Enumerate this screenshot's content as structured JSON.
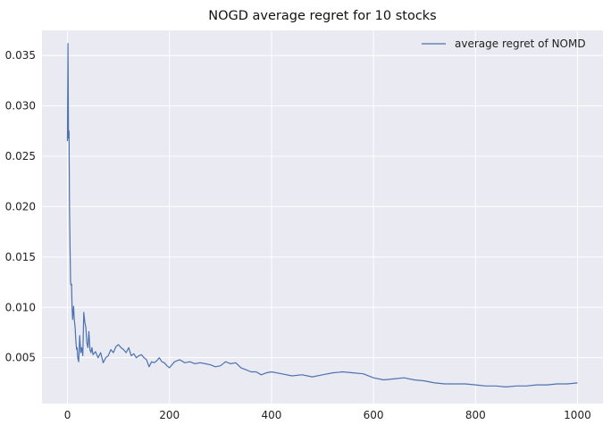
{
  "chart_data": {
    "type": "line",
    "title": "NOGD average regret for 10 stocks",
    "xlabel": "",
    "ylabel": "",
    "xlim": [
      -50,
      1050
    ],
    "ylim": [
      0.00045,
      0.0375
    ],
    "xticks": [
      0,
      200,
      400,
      600,
      800,
      1000
    ],
    "xtick_labels": [
      "0",
      "200",
      "400",
      "600",
      "800",
      "1000"
    ],
    "yticks": [
      0.005,
      0.01,
      0.015,
      0.02,
      0.025,
      0.03,
      0.035
    ],
    "ytick_labels": [
      "0.005",
      "0.010",
      "0.015",
      "0.020",
      "0.025",
      "0.030",
      "0.035"
    ],
    "grid": true,
    "legend_position": "top-right",
    "style": "seaborn-darkgrid",
    "colors": {
      "background": "#eaeaf2",
      "grid": "#ffffff",
      "line": "#4c72b0"
    },
    "series": [
      {
        "name": "average regret of NOMD",
        "x": [
          0,
          1,
          2,
          3,
          4,
          5,
          6,
          7,
          8,
          9,
          10,
          11,
          12,
          13,
          14,
          15,
          16,
          17,
          18,
          19,
          20,
          22,
          24,
          26,
          28,
          30,
          32,
          34,
          36,
          38,
          40,
          42,
          44,
          46,
          48,
          50,
          55,
          60,
          65,
          70,
          75,
          80,
          85,
          90,
          95,
          100,
          105,
          110,
          115,
          120,
          125,
          130,
          135,
          140,
          145,
          150,
          155,
          160,
          165,
          170,
          175,
          180,
          185,
          190,
          195,
          200,
          210,
          220,
          230,
          240,
          250,
          260,
          270,
          280,
          290,
          300,
          310,
          320,
          330,
          340,
          350,
          360,
          370,
          380,
          390,
          400,
          420,
          440,
          460,
          480,
          500,
          520,
          540,
          560,
          580,
          600,
          620,
          640,
          660,
          680,
          700,
          720,
          740,
          760,
          780,
          800,
          820,
          840,
          860,
          880,
          900,
          920,
          940,
          960,
          980,
          1000
        ],
        "y": [
          0.0265,
          0.0362,
          0.0268,
          0.0275,
          0.02,
          0.016,
          0.0125,
          0.0122,
          0.0123,
          0.01,
          0.0088,
          0.0095,
          0.0101,
          0.009,
          0.0085,
          0.008,
          0.007,
          0.0062,
          0.0058,
          0.006,
          0.005,
          0.0046,
          0.0072,
          0.0055,
          0.006,
          0.0052,
          0.0095,
          0.0085,
          0.008,
          0.0065,
          0.006,
          0.0076,
          0.0058,
          0.0055,
          0.006,
          0.0053,
          0.0056,
          0.005,
          0.0055,
          0.0045,
          0.005,
          0.0052,
          0.0058,
          0.0055,
          0.0061,
          0.0063,
          0.006,
          0.0058,
          0.0055,
          0.006,
          0.0052,
          0.0054,
          0.005,
          0.0052,
          0.0053,
          0.005,
          0.0048,
          0.0041,
          0.0046,
          0.0045,
          0.0047,
          0.005,
          0.0046,
          0.0045,
          0.0042,
          0.004,
          0.0046,
          0.0048,
          0.0045,
          0.0046,
          0.0044,
          0.0045,
          0.0044,
          0.0043,
          0.0041,
          0.0042,
          0.0046,
          0.0044,
          0.0045,
          0.004,
          0.0038,
          0.0036,
          0.0036,
          0.0033,
          0.0035,
          0.0036,
          0.0034,
          0.0032,
          0.0033,
          0.0031,
          0.0033,
          0.0035,
          0.0036,
          0.0035,
          0.0034,
          0.003,
          0.0028,
          0.0029,
          0.003,
          0.0028,
          0.0027,
          0.0025,
          0.0024,
          0.0024,
          0.0024,
          0.0023,
          0.0022,
          0.0022,
          0.0021,
          0.0022,
          0.0022,
          0.0023,
          0.0023,
          0.0024,
          0.0024,
          0.0025
        ]
      }
    ]
  }
}
